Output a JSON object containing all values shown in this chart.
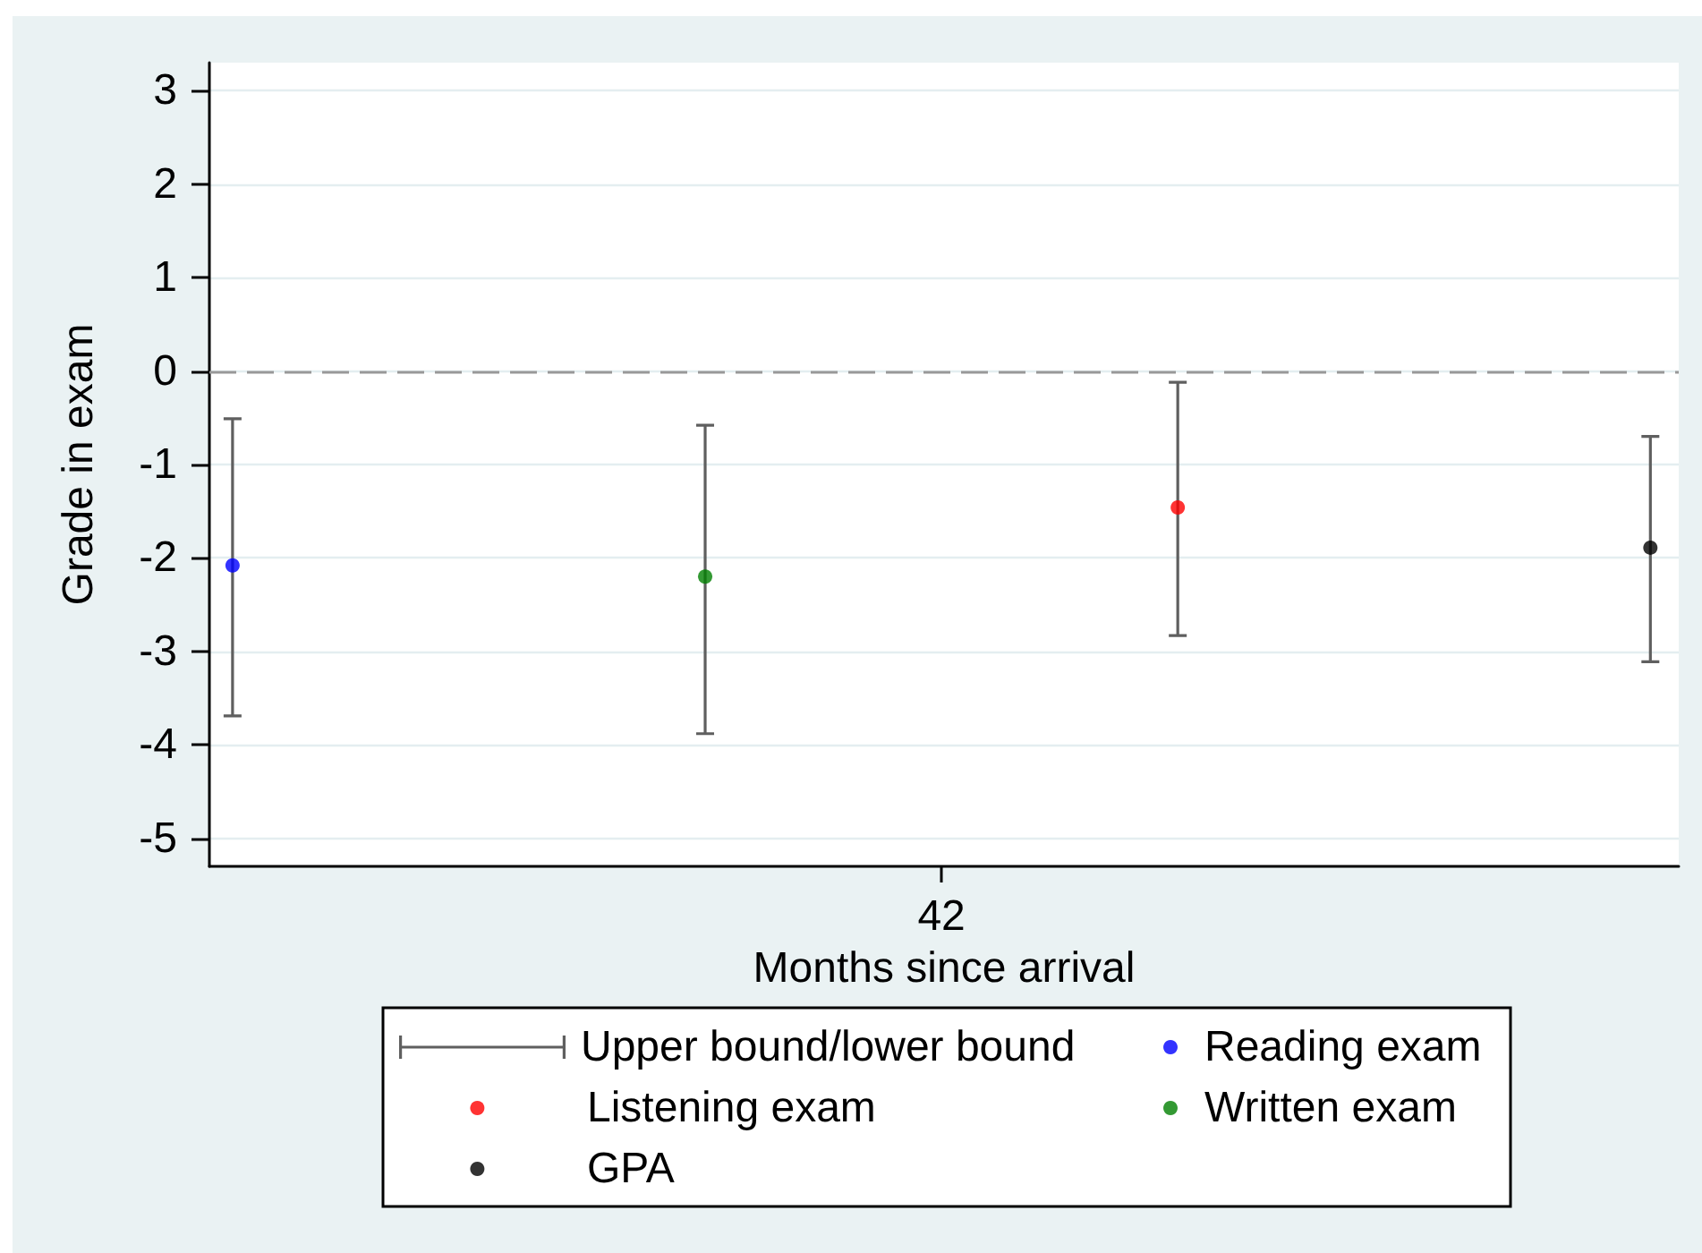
{
  "chart_data": {
    "type": "scatter",
    "xlabel": "Months since arrival",
    "ylabel": "Grade in exam",
    "annotations": [
      "42"
    ],
    "categories": [
      null,
      null,
      null,
      null
    ],
    "series": [
      {
        "name": "Upper bound/lower bound",
        "color": "#5f5f5f",
        "values": [
          null,
          null,
          null,
          null
        ]
      },
      {
        "name": "Reading exam",
        "color": "#0000ff",
        "values": [
          -2.08,
          null,
          null,
          null
        ],
        "errors": [
          [
            -3.69,
            -0.51
          ],
          null,
          null,
          null
        ]
      },
      {
        "name": "Listening exam",
        "color": "#ff0000",
        "values": [
          null,
          null,
          -1.46,
          null
        ],
        "errors": [
          null,
          null,
          [
            -2.83,
            -0.12
          ],
          null
        ]
      },
      {
        "name": "Written exam",
        "color": "#008000",
        "values": [
          null,
          -2.2,
          null,
          null
        ],
        "errors": [
          null,
          [
            -3.88,
            -0.58
          ],
          null,
          null
        ]
      },
      {
        "name": "GPA",
        "color": "#000000",
        "values": [
          null,
          null,
          null,
          -1.89
        ],
        "errors": [
          null,
          null,
          null,
          [
            -3.11,
            -0.7
          ]
        ]
      }
    ],
    "ylim": [
      -5.3,
      3.3
    ],
    "yticks": [
      -5,
      -4,
      -3,
      -2,
      -1,
      0,
      1,
      2,
      3
    ],
    "ref_lines": [
      {
        "axis": "y",
        "value": 0,
        "color": "#999999",
        "line_style": "dashed"
      }
    ],
    "grid": "y",
    "legend": "bottom",
    "marker": "circle"
  }
}
